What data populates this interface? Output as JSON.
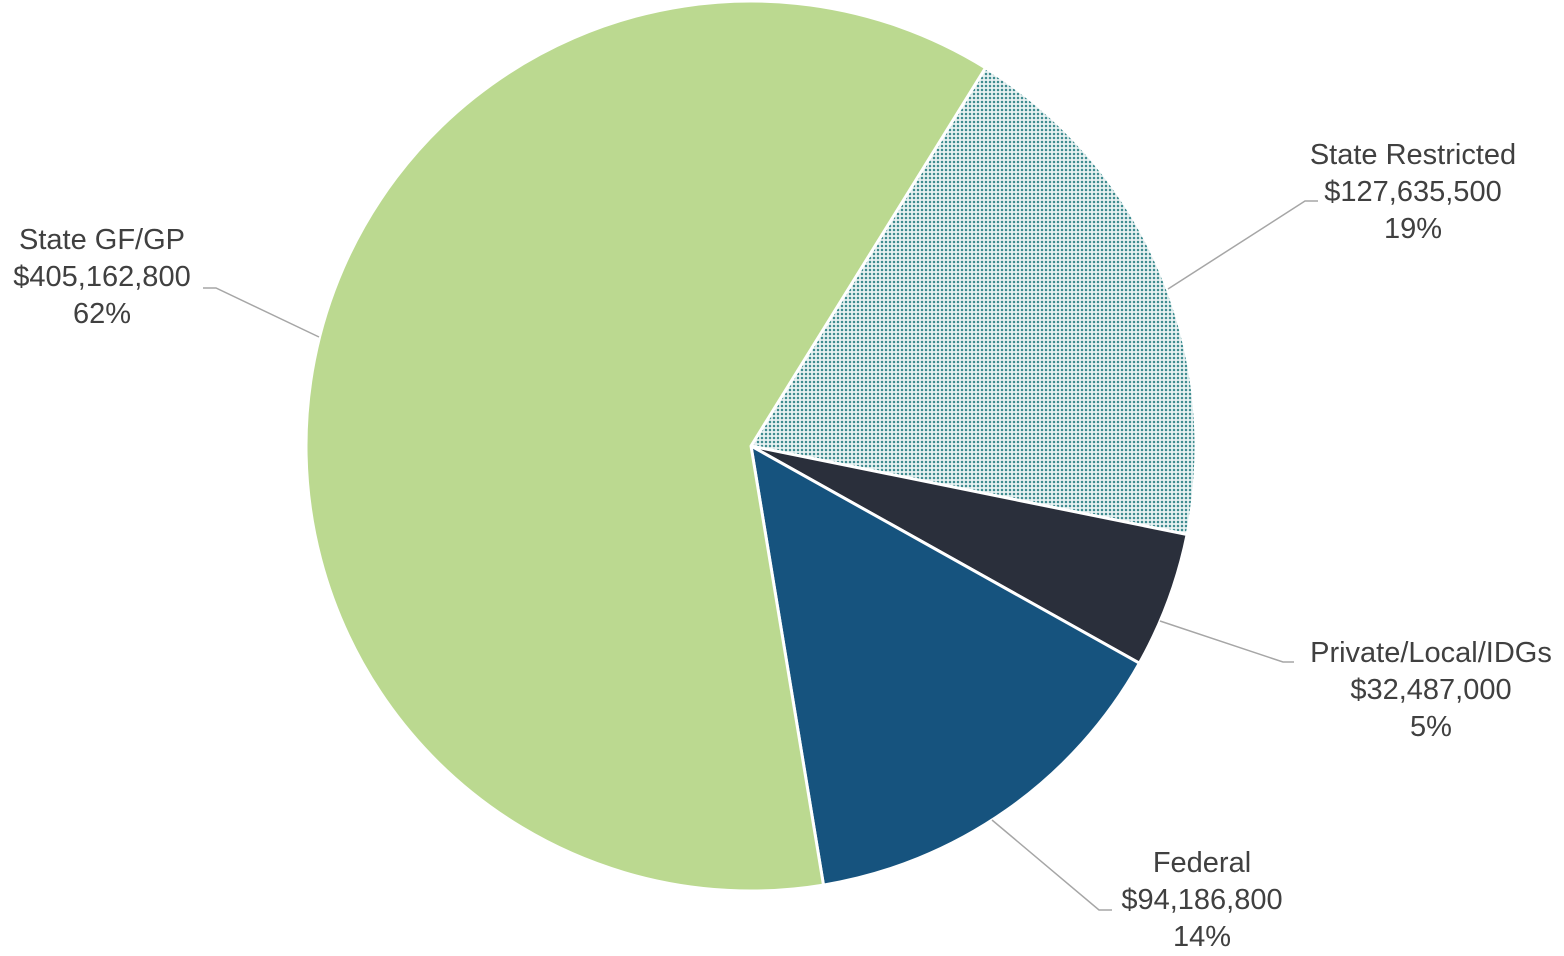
{
  "chart_data": {
    "type": "pie",
    "start_angle_deg": 0,
    "direction": "clockwise",
    "slices": [
      {
        "name": "State Restricted",
        "value": 127635500,
        "value_label": "$127,635,500",
        "percent_label": "19%",
        "color": "#3d8b8f",
        "pattern": "dotted"
      },
      {
        "name": "Private/Local/IDGs",
        "value": 32487000,
        "value_label": "$32,487,000",
        "percent_label": "5%",
        "color": "#2a2f3b",
        "pattern": "none"
      },
      {
        "name": "Federal",
        "value": 94186800,
        "value_label": "$94,186,800",
        "percent_label": "14%",
        "color": "#16537e",
        "pattern": "none"
      },
      {
        "name": "State GF/GP",
        "value": 405162800,
        "value_label": "$405,162,800",
        "percent_label": "62%",
        "color": "#bbd990",
        "pattern": "none"
      }
    ],
    "data_labels": "outside-with-leader-lines",
    "legend": "none"
  }
}
